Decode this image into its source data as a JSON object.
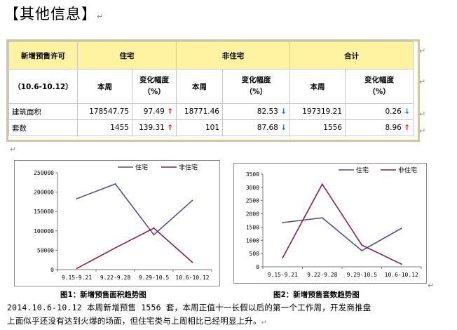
{
  "page": {
    "title": "【其他信息】",
    "para_mark": "↵"
  },
  "table": {
    "header": {
      "permit": "新增预售许可",
      "residential": "住宅",
      "non_residential": "非住宅",
      "total": "合计"
    },
    "subheader": {
      "period": "（10.6-10.12）",
      "this_week": "本周",
      "change_line1": "变化幅度",
      "change_line2": "（%）"
    },
    "rows": [
      {
        "label": "建筑面积",
        "res_value": "178547.75",
        "res_change": "97.49",
        "res_dir": "↑",
        "nonres_value": "18771.46",
        "nonres_change": "82.53",
        "nonres_dir": "↓",
        "total_value": "197319.21",
        "total_change": "0.26",
        "total_dir": "↓"
      },
      {
        "label": "套数",
        "res_value": "1455",
        "res_change": "139.31",
        "res_dir": "↑",
        "nonres_value": "101",
        "nonres_change": "87.68",
        "nonres_dir": "↓",
        "total_value": "1556",
        "total_change": "8.96",
        "total_dir": "↑"
      }
    ]
  },
  "colors": {
    "residential": "#4f4f8f",
    "non_residential": "#8a1f44",
    "header_bg": "#fff2a0",
    "up": "#e01818",
    "down": "#1a6fd6"
  },
  "chart_data": [
    {
      "type": "line",
      "caption": "图1：新增预售面积趋势图",
      "categories": [
        "9.15-9.21",
        "9.22-9.28",
        "9.29-10.5",
        "10.6-10.12"
      ],
      "series": [
        {
          "name": "住宅",
          "values": [
            183000,
            221000,
            90000,
            178547.75
          ]
        },
        {
          "name": "非住宅",
          "values": [
            3000,
            56000,
            107000,
            18771.46
          ]
        }
      ],
      "ylim": [
        0,
        250000
      ],
      "yticks": [
        "0",
        "50000",
        "100000",
        "150000",
        "200000",
        "250000"
      ],
      "legend": "top"
    },
    {
      "type": "line",
      "caption": "图2：新增预售套数趋势图",
      "categories": [
        "9.15-9.21",
        "9.22-9.28",
        "9.29-10.5",
        "10.6-10.12"
      ],
      "series": [
        {
          "name": "住宅",
          "values": [
            1670,
            1850,
            610,
            1455
          ]
        },
        {
          "name": "非住宅",
          "values": [
            340,
            3120,
            820,
            101
          ]
        }
      ],
      "ylim": [
        0,
        3500
      ],
      "yticks": [
        "0",
        "500",
        "1000",
        "1500",
        "2000",
        "2500",
        "3000",
        "3500"
      ],
      "legend": "top"
    }
  ],
  "paragraph": {
    "line1": "2014.10.6-10.12 本周新增预售 1556 套，本周正值十一长假以后的第一个工作周，开发商推盘",
    "line2": "上面似乎还没有达到火爆的场面，但住宅类与上周相比已经明显上升。"
  }
}
